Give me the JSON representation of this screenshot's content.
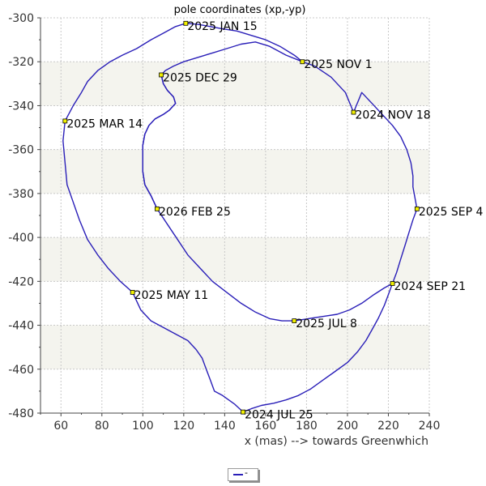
{
  "chart_data": {
    "type": "line",
    "title": "pole coordinates (xp,-yp)",
    "xlabel": "x (mas) --> towards Greenwhich",
    "ylabel": "",
    "xlim": [
      50,
      240
    ],
    "ylim": [
      -480,
      -300
    ],
    "x_ticks": [
      "60",
      "80",
      "100",
      "120",
      "140",
      "160",
      "180",
      "200",
      "220",
      "240"
    ],
    "y_ticks": [
      "-300",
      "-320",
      "-340",
      "-360",
      "-380",
      "-400",
      "-420",
      "-440",
      "-460",
      "-480"
    ],
    "x_tick_values": [
      60,
      80,
      100,
      120,
      140,
      160,
      180,
      200,
      220,
      240
    ],
    "y_tick_values": [
      -300,
      -320,
      -340,
      -360,
      -380,
      -400,
      -420,
      -440,
      -460,
      -480
    ],
    "band_color": "#f4f4ee",
    "grid": true,
    "series": [
      {
        "color": "#2a1fb8",
        "points": [
          [
            149,
            -479.5
          ],
          [
            153,
            -478
          ],
          [
            158,
            -476.5
          ],
          [
            164,
            -475.5
          ],
          [
            170,
            -474
          ],
          [
            176,
            -472
          ],
          [
            182,
            -469
          ],
          [
            188,
            -465
          ],
          [
            194,
            -461
          ],
          [
            200,
            -457
          ],
          [
            205,
            -452
          ],
          [
            209,
            -447
          ],
          [
            212,
            -442
          ],
          [
            215,
            -437
          ],
          [
            218,
            -431
          ],
          [
            220,
            -426
          ],
          [
            222,
            -421
          ],
          [
            224,
            -416
          ],
          [
            226,
            -410
          ],
          [
            228,
            -404
          ],
          [
            230,
            -398
          ],
          [
            232,
            -392
          ],
          [
            234,
            -387
          ],
          [
            233,
            -382
          ],
          [
            232,
            -377
          ],
          [
            232,
            -372
          ],
          [
            231,
            -366
          ],
          [
            229,
            -360
          ],
          [
            226,
            -354
          ],
          [
            222,
            -349
          ],
          [
            217,
            -344
          ],
          [
            212,
            -339
          ],
          [
            207,
            -334
          ],
          [
            203,
            -343
          ],
          [
            199,
            -334
          ],
          [
            192,
            -327
          ],
          [
            184,
            -322
          ],
          [
            178,
            -320
          ],
          [
            170,
            -317
          ],
          [
            162,
            -313
          ],
          [
            155,
            -311
          ],
          [
            148,
            -312
          ],
          [
            141,
            -314
          ],
          [
            134,
            -316
          ],
          [
            127,
            -318
          ],
          [
            120,
            -320
          ],
          [
            115,
            -322
          ],
          [
            111,
            -324
          ],
          [
            109,
            -326
          ],
          [
            110,
            -330
          ],
          [
            112,
            -333
          ],
          [
            115,
            -336
          ],
          [
            116,
            -339
          ],
          [
            113,
            -342
          ],
          [
            110,
            -344
          ],
          [
            106,
            -346
          ],
          [
            103,
            -349
          ],
          [
            101,
            -353
          ],
          [
            100,
            -358
          ],
          [
            100,
            -364
          ],
          [
            100,
            -370
          ],
          [
            101,
            -376
          ],
          [
            104,
            -381
          ],
          [
            107,
            -387
          ]
        ]
      },
      {
        "color": "#2a1fb8",
        "points": [
          [
            107,
            -387
          ],
          [
            104,
            -381
          ],
          [
            101,
            -376
          ],
          [
            100,
            -370
          ],
          [
            100,
            -364
          ],
          [
            100,
            -358
          ],
          [
            101,
            -353
          ],
          [
            103,
            -349
          ],
          [
            106,
            -346
          ],
          [
            110,
            -344
          ],
          [
            113,
            -342
          ],
          [
            116,
            -339
          ],
          [
            115,
            -336
          ],
          [
            112,
            -333
          ],
          [
            110,
            -330
          ],
          [
            109,
            -326
          ]
        ]
      },
      {
        "color": "#2a1fb8",
        "points": [
          [
            149,
            -479.5
          ],
          [
            145,
            -476
          ],
          [
            139,
            -472
          ],
          [
            135,
            -470
          ],
          [
            133,
            -465
          ],
          [
            131,
            -460
          ],
          [
            129,
            -455
          ],
          [
            126,
            -451
          ],
          [
            122,
            -447
          ],
          [
            116,
            -444
          ],
          [
            110,
            -441
          ],
          [
            104,
            -438
          ],
          [
            99,
            -433
          ],
          [
            95,
            -425
          ]
        ]
      },
      {
        "color": "#2a1fb8",
        "points": [
          [
            95,
            -425
          ],
          [
            89,
            -420
          ],
          [
            83,
            -414
          ],
          [
            78,
            -408
          ],
          [
            73,
            -401
          ],
          [
            69,
            -392
          ],
          [
            66,
            -384
          ],
          [
            63,
            -376
          ],
          [
            62,
            -366
          ],
          [
            61,
            -356
          ],
          [
            62,
            -347
          ]
        ]
      },
      {
        "color": "#2a1fb8",
        "points": [
          [
            62,
            -347
          ],
          [
            66,
            -340
          ],
          [
            70,
            -334
          ],
          [
            73,
            -329
          ],
          [
            78,
            -324
          ],
          [
            84,
            -320
          ],
          [
            90,
            -317
          ],
          [
            97,
            -314
          ],
          [
            104,
            -310
          ],
          [
            110,
            -307
          ],
          [
            116,
            -304
          ],
          [
            121,
            -302.5
          ]
        ]
      },
      {
        "color": "#2a1fb8",
        "points": [
          [
            121,
            -302.5
          ],
          [
            127,
            -303
          ],
          [
            133,
            -304
          ],
          [
            139,
            -305
          ],
          [
            146,
            -306
          ],
          [
            153,
            -308
          ],
          [
            160,
            -310
          ],
          [
            167,
            -313
          ],
          [
            174,
            -317
          ],
          [
            178,
            -320
          ]
        ]
      },
      {
        "color": "#2a1fb8",
        "points": [
          [
            107,
            -387
          ],
          [
            112,
            -394
          ],
          [
            117,
            -401
          ],
          [
            122,
            -408
          ],
          [
            128,
            -414
          ],
          [
            134,
            -420
          ],
          [
            141,
            -425
          ],
          [
            148,
            -430
          ],
          [
            155,
            -434
          ],
          [
            162,
            -437
          ],
          [
            168,
            -438
          ],
          [
            174,
            -438
          ],
          [
            181,
            -437
          ],
          [
            188,
            -436
          ],
          [
            195,
            -435
          ],
          [
            201,
            -433
          ],
          [
            207,
            -430
          ],
          [
            213,
            -426
          ],
          [
            218,
            -423
          ],
          [
            222,
            -421
          ]
        ]
      }
    ],
    "markers": [
      {
        "x": 149,
        "y": -479.5,
        "label": "2024 JUL 25"
      },
      {
        "x": 222,
        "y": -421,
        "label": "2024 SEP 21"
      },
      {
        "x": 203,
        "y": -343,
        "label": "2024 NOV 18"
      },
      {
        "x": 121,
        "y": -302.5,
        "label": "2025 JAN 15"
      },
      {
        "x": 62,
        "y": -347,
        "label": "2025 MAR 14"
      },
      {
        "x": 95,
        "y": -425,
        "label": "2025 MAY 11"
      },
      {
        "x": 174,
        "y": -438,
        "label": "2025 JUL 8"
      },
      {
        "x": 234,
        "y": -387,
        "label": "2025 SEP 4"
      },
      {
        "x": 178,
        "y": -320,
        "label": "2025 NOV 1"
      },
      {
        "x": 109,
        "y": -326,
        "label": "2025 DEC 29"
      },
      {
        "x": 107,
        "y": -387,
        "label": "2026 FEB 25"
      }
    ],
    "legend": {
      "placement": "bottom-center",
      "entries": [
        "-"
      ]
    }
  }
}
